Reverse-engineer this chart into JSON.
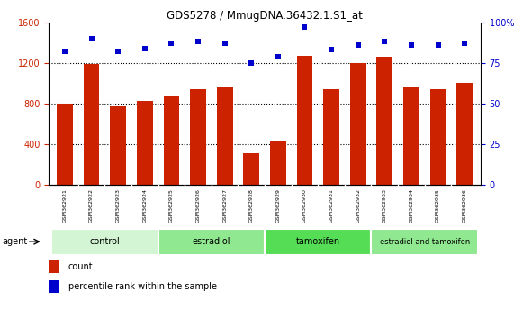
{
  "title": "GDS5278 / MmugDNA.36432.1.S1_at",
  "samples": [
    "GSM362921",
    "GSM362922",
    "GSM362923",
    "GSM362924",
    "GSM362925",
    "GSM362926",
    "GSM362927",
    "GSM362928",
    "GSM362929",
    "GSM362930",
    "GSM362931",
    "GSM362932",
    "GSM362933",
    "GSM362934",
    "GSM362935",
    "GSM362936"
  ],
  "counts": [
    800,
    1190,
    770,
    830,
    870,
    940,
    960,
    310,
    440,
    1270,
    940,
    1200,
    1260,
    960,
    940,
    1000
  ],
  "percentiles": [
    82,
    90,
    82,
    84,
    87,
    88,
    87,
    75,
    79,
    97,
    83,
    86,
    88,
    86,
    86,
    87
  ],
  "bar_color": "#cc2200",
  "dot_color": "#0000cc",
  "ylim_left": [
    0,
    1600
  ],
  "ylim_right": [
    0,
    100
  ],
  "yticks_left": [
    0,
    400,
    800,
    1200,
    1600
  ],
  "yticks_right": [
    0,
    25,
    50,
    75,
    100
  ],
  "groups": [
    {
      "label": "control",
      "start": 0,
      "end": 3,
      "color": "#d4f5d4"
    },
    {
      "label": "estradiol",
      "start": 4,
      "end": 7,
      "color": "#90e890"
    },
    {
      "label": "tamoxifen",
      "start": 8,
      "end": 11,
      "color": "#55dd55"
    },
    {
      "label": "estradiol and tamoxifen",
      "start": 12,
      "end": 15,
      "color": "#90e890"
    }
  ],
  "group_row_label": "agent",
  "legend_count_label": "count",
  "legend_pct_label": "percentile rank within the sample",
  "background_color": "#ffffff",
  "tick_label_color_left": "#cc2200",
  "tick_label_color_right": "#0000cc",
  "sample_box_color": "#cccccc",
  "gridline_ticks": [
    400,
    800,
    1200
  ]
}
